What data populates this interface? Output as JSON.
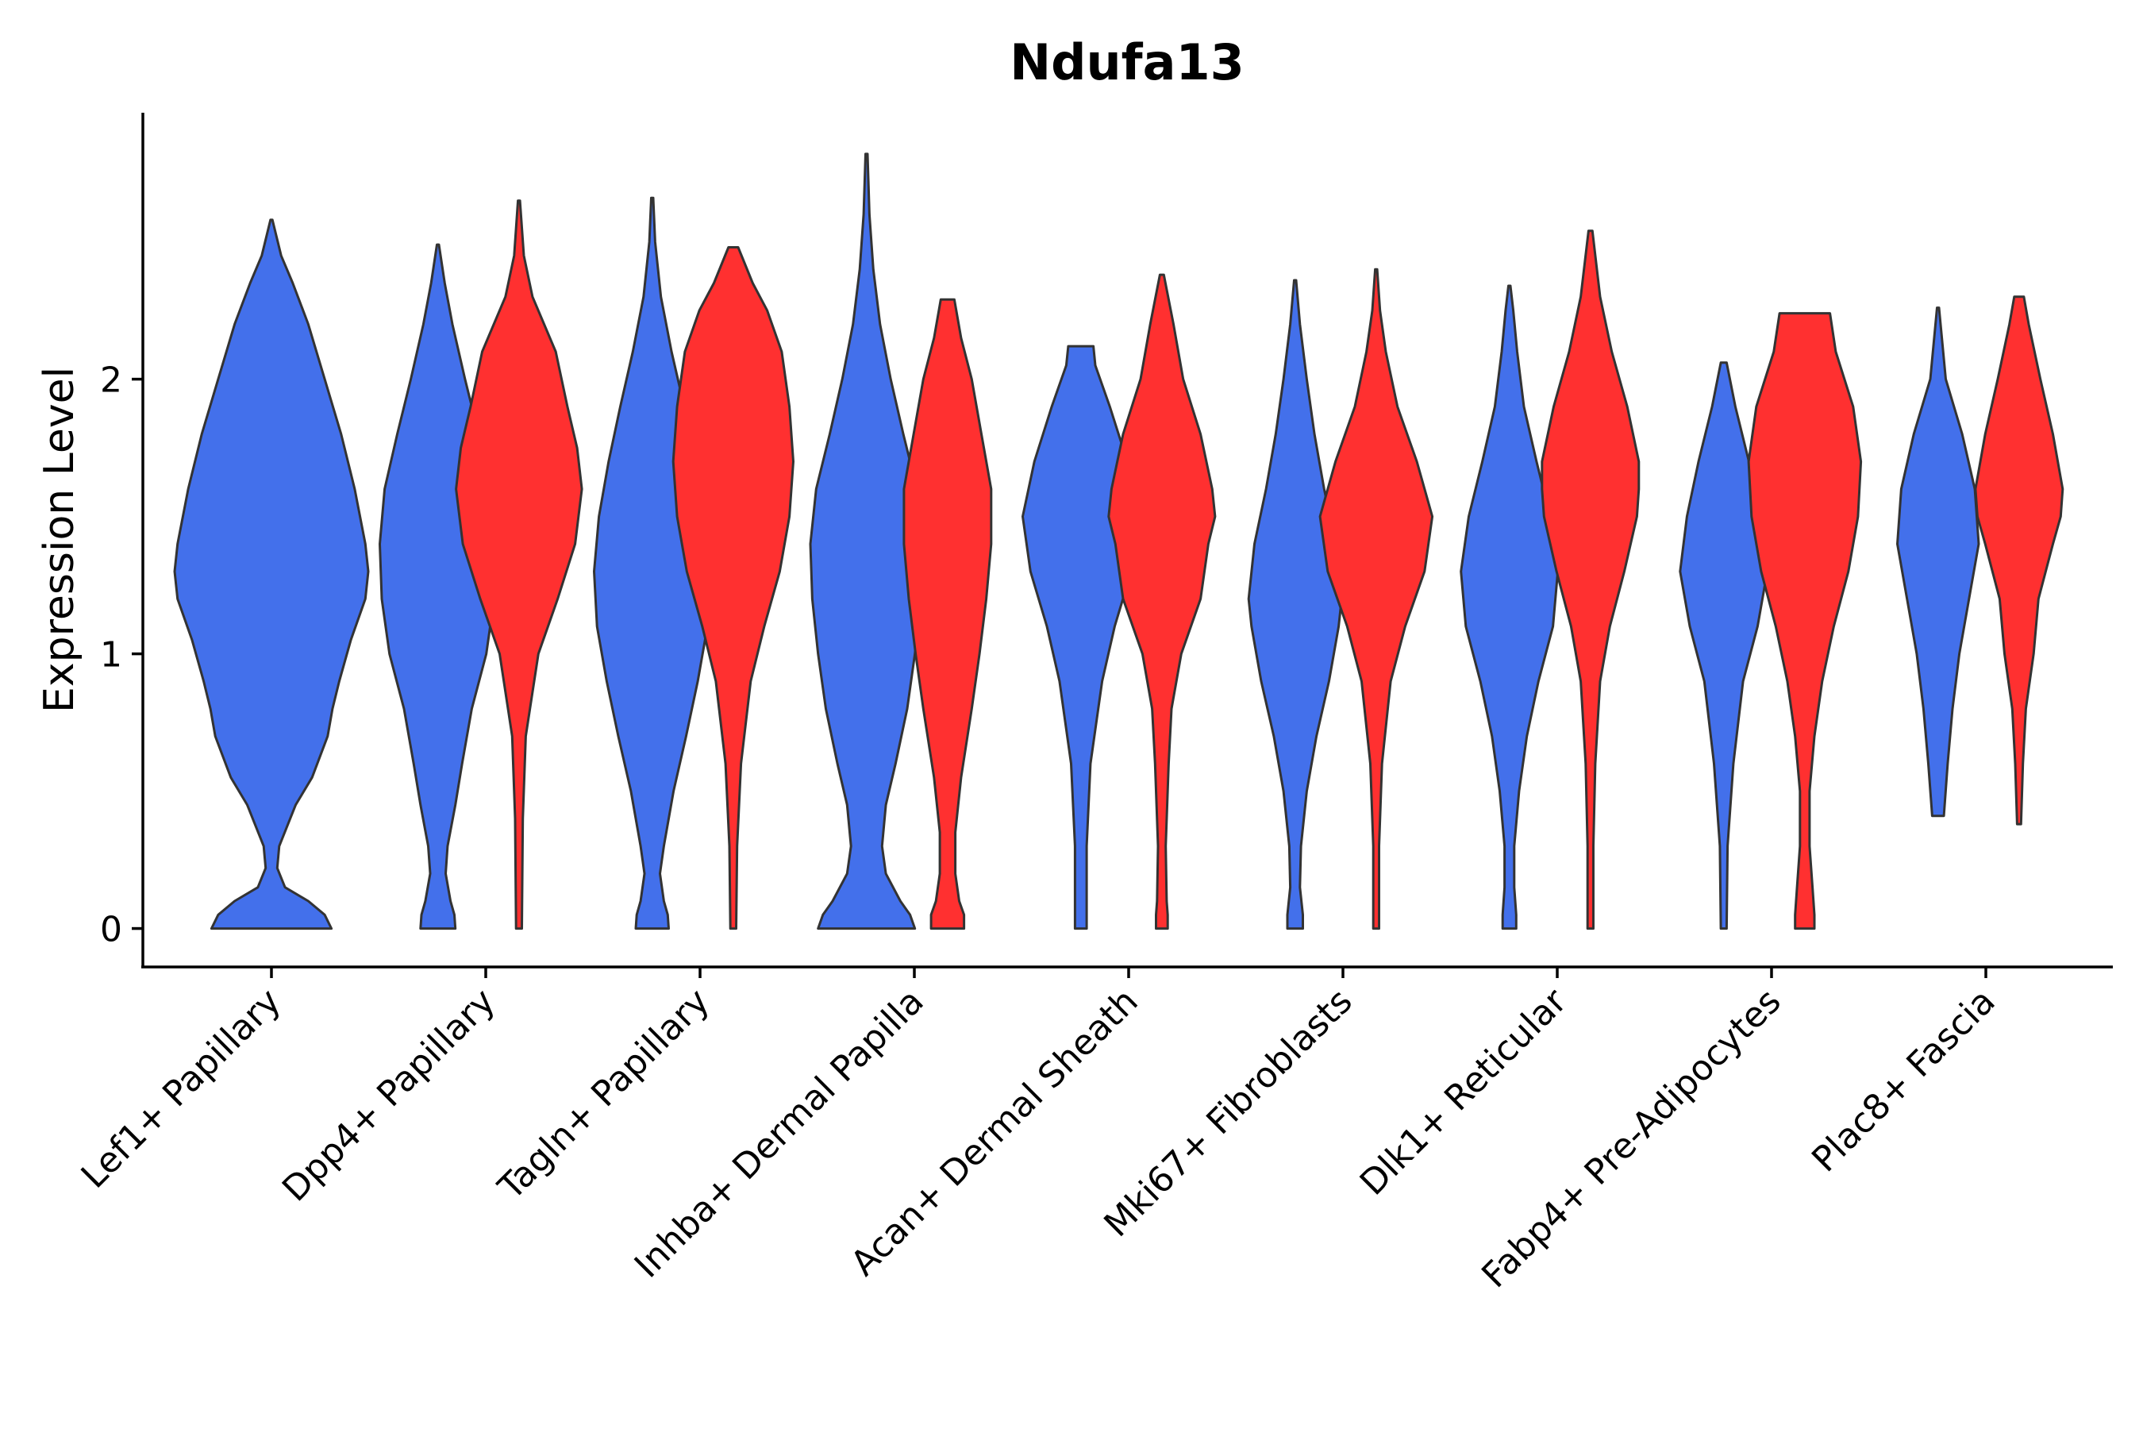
{
  "chart_data": {
    "type": "violin",
    "title": "Ndufa13",
    "xlabel": "",
    "ylabel": "Expression Level",
    "ylim": [
      -0.14,
      2.97
    ],
    "yticks": [
      0,
      1,
      2
    ],
    "grid": false,
    "legend": "none",
    "colors": {
      "group_a": "#4370EB",
      "group_b": "#FF3030",
      "outline": "#333333"
    },
    "categories": [
      "Lef1+ Papillary",
      "Dpp4+ Papillary",
      "Tagln+ Papillary",
      "Inhba+ Dermal Papilla",
      "Acan+ Dermal Sheath",
      "Mki67+ Fibroblasts",
      "Dlk1+ Reticular",
      "Fabp4+ Pre-Adipocytes",
      "Plac8+ Fascia"
    ],
    "violins": [
      {
        "category": "Lef1+ Papillary",
        "group": "A",
        "offset": 0,
        "min": 0,
        "max": 2.58,
        "profile": [
          [
            0,
            0.62
          ],
          [
            0.05,
            0.55
          ],
          [
            0.1,
            0.38
          ],
          [
            0.15,
            0.14
          ],
          [
            0.22,
            0.06
          ],
          [
            0.3,
            0.08
          ],
          [
            0.45,
            0.25
          ],
          [
            0.55,
            0.42
          ],
          [
            0.7,
            0.58
          ],
          [
            0.8,
            0.63
          ],
          [
            0.9,
            0.7
          ],
          [
            1.05,
            0.82
          ],
          [
            1.2,
            0.97
          ],
          [
            1.3,
            1.0
          ],
          [
            1.4,
            0.97
          ],
          [
            1.6,
            0.86
          ],
          [
            1.8,
            0.72
          ],
          [
            2.0,
            0.55
          ],
          [
            2.2,
            0.38
          ],
          [
            2.35,
            0.22
          ],
          [
            2.45,
            0.1
          ],
          [
            2.58,
            0.01
          ]
        ]
      },
      {
        "category": "Dpp4+ Papillary",
        "group": "A",
        "offset": -0.72,
        "min": 0,
        "max": 2.49,
        "profile": [
          [
            0,
            0.18
          ],
          [
            0.05,
            0.17
          ],
          [
            0.1,
            0.13
          ],
          [
            0.2,
            0.08
          ],
          [
            0.3,
            0.1
          ],
          [
            0.45,
            0.18
          ],
          [
            0.6,
            0.25
          ],
          [
            0.8,
            0.35
          ],
          [
            1.0,
            0.5
          ],
          [
            1.2,
            0.58
          ],
          [
            1.4,
            0.6
          ],
          [
            1.6,
            0.55
          ],
          [
            1.8,
            0.42
          ],
          [
            2.0,
            0.28
          ],
          [
            2.2,
            0.15
          ],
          [
            2.35,
            0.07
          ],
          [
            2.49,
            0.01
          ]
        ]
      },
      {
        "category": "Dpp4+ Papillary",
        "group": "B",
        "offset": 0.5,
        "min": 0,
        "max": 2.65,
        "profile": [
          [
            0,
            0.03
          ],
          [
            0.4,
            0.04
          ],
          [
            0.7,
            0.07
          ],
          [
            1.0,
            0.2
          ],
          [
            1.2,
            0.4
          ],
          [
            1.4,
            0.58
          ],
          [
            1.6,
            0.65
          ],
          [
            1.75,
            0.6
          ],
          [
            1.9,
            0.5
          ],
          [
            2.1,
            0.38
          ],
          [
            2.3,
            0.14
          ],
          [
            2.45,
            0.05
          ],
          [
            2.65,
            0.01
          ]
        ]
      },
      {
        "category": "Tagln+ Papillary",
        "group": "A",
        "offset": -0.72,
        "min": 0,
        "max": 2.66,
        "profile": [
          [
            0,
            0.17
          ],
          [
            0.05,
            0.16
          ],
          [
            0.1,
            0.12
          ],
          [
            0.2,
            0.08
          ],
          [
            0.3,
            0.12
          ],
          [
            0.5,
            0.22
          ],
          [
            0.7,
            0.35
          ],
          [
            0.9,
            0.47
          ],
          [
            1.1,
            0.57
          ],
          [
            1.3,
            0.6
          ],
          [
            1.5,
            0.55
          ],
          [
            1.7,
            0.45
          ],
          [
            1.9,
            0.33
          ],
          [
            2.1,
            0.2
          ],
          [
            2.3,
            0.09
          ],
          [
            2.5,
            0.03
          ],
          [
            2.66,
            0.01
          ]
        ]
      },
      {
        "category": "Tagln+ Papillary",
        "group": "B",
        "offset": 0.5,
        "min": 0,
        "max": 2.48,
        "profile": [
          [
            0,
            0.03
          ],
          [
            0.3,
            0.04
          ],
          [
            0.6,
            0.08
          ],
          [
            0.9,
            0.18
          ],
          [
            1.1,
            0.32
          ],
          [
            1.3,
            0.48
          ],
          [
            1.5,
            0.58
          ],
          [
            1.7,
            0.62
          ],
          [
            1.9,
            0.58
          ],
          [
            2.1,
            0.5
          ],
          [
            2.25,
            0.35
          ],
          [
            2.35,
            0.2
          ],
          [
            2.48,
            0.05
          ]
        ]
      },
      {
        "category": "Inhba+ Dermal Papilla",
        "group": "A",
        "offset": -0.72,
        "min": 0,
        "max": 2.82,
        "profile": [
          [
            0,
            0.5
          ],
          [
            0.05,
            0.45
          ],
          [
            0.1,
            0.35
          ],
          [
            0.2,
            0.2
          ],
          [
            0.3,
            0.16
          ],
          [
            0.45,
            0.2
          ],
          [
            0.6,
            0.3
          ],
          [
            0.8,
            0.42
          ],
          [
            1.0,
            0.5
          ],
          [
            1.2,
            0.56
          ],
          [
            1.4,
            0.58
          ],
          [
            1.6,
            0.52
          ],
          [
            1.8,
            0.38
          ],
          [
            2.0,
            0.25
          ],
          [
            2.2,
            0.14
          ],
          [
            2.4,
            0.07
          ],
          [
            2.6,
            0.03
          ],
          [
            2.82,
            0.01
          ]
        ]
      },
      {
        "category": "Inhba+ Dermal Papilla",
        "group": "B",
        "offset": 0.5,
        "min": 0,
        "max": 2.29,
        "profile": [
          [
            0,
            0.17
          ],
          [
            0.05,
            0.17
          ],
          [
            0.1,
            0.12
          ],
          [
            0.2,
            0.08
          ],
          [
            0.35,
            0.08
          ],
          [
            0.55,
            0.14
          ],
          [
            0.8,
            0.25
          ],
          [
            1.0,
            0.33
          ],
          [
            1.2,
            0.4
          ],
          [
            1.4,
            0.45
          ],
          [
            1.6,
            0.45
          ],
          [
            1.8,
            0.35
          ],
          [
            2.0,
            0.25
          ],
          [
            2.15,
            0.14
          ],
          [
            2.29,
            0.07
          ]
        ]
      },
      {
        "category": "Acan+ Dermal Sheath",
        "group": "A",
        "offset": -0.72,
        "min": 0,
        "max": 2.12,
        "profile": [
          [
            0,
            0.06
          ],
          [
            0.3,
            0.06
          ],
          [
            0.6,
            0.1
          ],
          [
            0.9,
            0.22
          ],
          [
            1.1,
            0.35
          ],
          [
            1.3,
            0.52
          ],
          [
            1.5,
            0.6
          ],
          [
            1.7,
            0.48
          ],
          [
            1.9,
            0.3
          ],
          [
            2.05,
            0.15
          ],
          [
            2.12,
            0.13
          ]
        ]
      },
      {
        "category": "Acan+ Dermal Sheath",
        "group": "B",
        "offset": 0.5,
        "min": 0,
        "max": 2.38,
        "profile": [
          [
            0,
            0.06
          ],
          [
            0.05,
            0.06
          ],
          [
            0.1,
            0.05
          ],
          [
            0.3,
            0.04
          ],
          [
            0.6,
            0.07
          ],
          [
            0.8,
            0.1
          ],
          [
            1.0,
            0.2
          ],
          [
            1.2,
            0.4
          ],
          [
            1.4,
            0.48
          ],
          [
            1.5,
            0.55
          ],
          [
            1.6,
            0.52
          ],
          [
            1.8,
            0.4
          ],
          [
            2.0,
            0.22
          ],
          [
            2.2,
            0.12
          ],
          [
            2.38,
            0.02
          ]
        ]
      },
      {
        "category": "Mki67+ Fibroblasts",
        "group": "A",
        "offset": -0.72,
        "min": 0,
        "max": 2.36,
        "profile": [
          [
            0,
            0.08
          ],
          [
            0.05,
            0.08
          ],
          [
            0.15,
            0.05
          ],
          [
            0.3,
            0.06
          ],
          [
            0.5,
            0.12
          ],
          [
            0.7,
            0.22
          ],
          [
            0.9,
            0.35
          ],
          [
            1.1,
            0.45
          ],
          [
            1.2,
            0.48
          ],
          [
            1.4,
            0.42
          ],
          [
            1.6,
            0.3
          ],
          [
            1.8,
            0.2
          ],
          [
            2.0,
            0.12
          ],
          [
            2.2,
            0.05
          ],
          [
            2.36,
            0.01
          ]
        ]
      },
      {
        "category": "Mki67+ Fibroblasts",
        "group": "B",
        "offset": 0.5,
        "min": 0,
        "max": 2.4,
        "profile": [
          [
            0,
            0.03
          ],
          [
            0.3,
            0.03
          ],
          [
            0.6,
            0.06
          ],
          [
            0.9,
            0.15
          ],
          [
            1.1,
            0.3
          ],
          [
            1.3,
            0.5
          ],
          [
            1.5,
            0.58
          ],
          [
            1.7,
            0.42
          ],
          [
            1.9,
            0.22
          ],
          [
            2.1,
            0.1
          ],
          [
            2.25,
            0.04
          ],
          [
            2.4,
            0.01
          ]
        ]
      },
      {
        "category": "Dlk1+ Reticular",
        "group": "A",
        "offset": -0.72,
        "min": 0,
        "max": 2.34,
        "profile": [
          [
            0,
            0.07
          ],
          [
            0.05,
            0.07
          ],
          [
            0.15,
            0.05
          ],
          [
            0.3,
            0.05
          ],
          [
            0.5,
            0.1
          ],
          [
            0.7,
            0.18
          ],
          [
            0.9,
            0.3
          ],
          [
            1.1,
            0.45
          ],
          [
            1.3,
            0.5
          ],
          [
            1.5,
            0.42
          ],
          [
            1.7,
            0.28
          ],
          [
            1.9,
            0.15
          ],
          [
            2.1,
            0.08
          ],
          [
            2.25,
            0.04
          ],
          [
            2.34,
            0.01
          ]
        ]
      },
      {
        "category": "Dlk1+ Reticular",
        "group": "B",
        "offset": 0.5,
        "min": 0,
        "max": 2.54,
        "profile": [
          [
            0,
            0.03
          ],
          [
            0.3,
            0.03
          ],
          [
            0.6,
            0.05
          ],
          [
            0.9,
            0.1
          ],
          [
            1.1,
            0.2
          ],
          [
            1.3,
            0.35
          ],
          [
            1.5,
            0.48
          ],
          [
            1.6,
            0.5
          ],
          [
            1.7,
            0.5
          ],
          [
            1.9,
            0.38
          ],
          [
            2.1,
            0.22
          ],
          [
            2.3,
            0.1
          ],
          [
            2.54,
            0.02
          ]
        ]
      },
      {
        "category": "Fabp4+ Pre-Adipocytes",
        "group": "A",
        "offset": -0.72,
        "min": 0,
        "max": 2.06,
        "profile": [
          [
            0,
            0.03
          ],
          [
            0.3,
            0.04
          ],
          [
            0.6,
            0.1
          ],
          [
            0.9,
            0.2
          ],
          [
            1.1,
            0.35
          ],
          [
            1.3,
            0.45
          ],
          [
            1.5,
            0.38
          ],
          [
            1.7,
            0.26
          ],
          [
            1.9,
            0.12
          ],
          [
            2.06,
            0.03
          ]
        ]
      },
      {
        "category": "Fabp4+ Pre-Adipocytes",
        "group": "B",
        "offset": 0.5,
        "min": 0,
        "max": 2.24,
        "profile": [
          [
            0,
            0.1
          ],
          [
            0.05,
            0.1
          ],
          [
            0.15,
            0.08
          ],
          [
            0.3,
            0.05
          ],
          [
            0.5,
            0.05
          ],
          [
            0.7,
            0.1
          ],
          [
            0.9,
            0.18
          ],
          [
            1.1,
            0.3
          ],
          [
            1.3,
            0.45
          ],
          [
            1.5,
            0.55
          ],
          [
            1.7,
            0.58
          ],
          [
            1.9,
            0.5
          ],
          [
            2.1,
            0.32
          ],
          [
            2.24,
            0.26
          ]
        ]
      },
      {
        "category": "Plac8+ Fascia",
        "group": "A",
        "offset": -0.72,
        "min": 0.41,
        "max": 2.26,
        "profile": [
          [
            0.41,
            0.06
          ],
          [
            0.6,
            0.1
          ],
          [
            0.8,
            0.15
          ],
          [
            1.0,
            0.22
          ],
          [
            1.2,
            0.32
          ],
          [
            1.4,
            0.42
          ],
          [
            1.6,
            0.38
          ],
          [
            1.8,
            0.25
          ],
          [
            2.0,
            0.08
          ],
          [
            2.26,
            0.01
          ]
        ]
      },
      {
        "category": "Plac8+ Fascia",
        "group": "B",
        "offset": 0.5,
        "min": 0.38,
        "max": 2.3,
        "profile": [
          [
            0.38,
            0.02
          ],
          [
            0.6,
            0.04
          ],
          [
            0.8,
            0.07
          ],
          [
            1.0,
            0.15
          ],
          [
            1.2,
            0.2
          ],
          [
            1.4,
            0.35
          ],
          [
            1.5,
            0.43
          ],
          [
            1.6,
            0.45
          ],
          [
            1.8,
            0.35
          ],
          [
            2.0,
            0.22
          ],
          [
            2.2,
            0.1
          ],
          [
            2.3,
            0.05
          ]
        ]
      }
    ]
  }
}
